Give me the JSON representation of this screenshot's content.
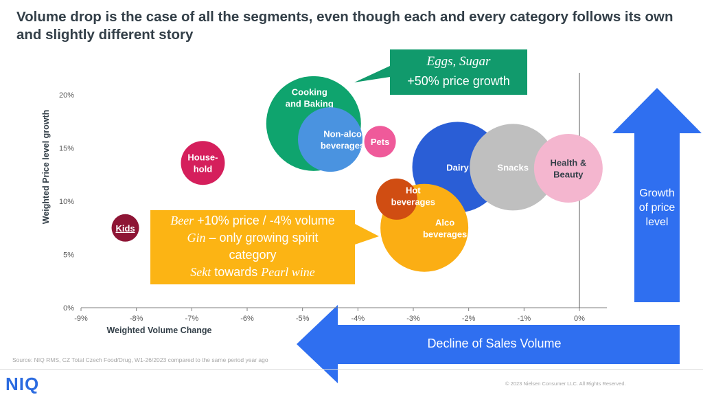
{
  "title": "Volume drop is the case of all the segments, even though each and every category follows its own and slightly different story",
  "chart_data": {
    "type": "scatter",
    "xlabel": "Weighted Volume Change",
    "ylabel": "Weighted Price level growth",
    "xlim": [
      -9,
      0.5
    ],
    "ylim": [
      0,
      20
    ],
    "x_ticks": [
      "-9%",
      "-8%",
      "-7%",
      "-6%",
      "-5%",
      "-4%",
      "-3%",
      "-2%",
      "-1%",
      "0%"
    ],
    "y_ticks": [
      "0%",
      "5%",
      "10%",
      "15%",
      "20%"
    ],
    "grid": false,
    "bubbles": [
      {
        "name": "Cooking and Baking",
        "lines": [
          "Cooking",
          "and Baking"
        ],
        "x": -4.8,
        "y": 17.3,
        "r": 69,
        "color": "#0fa46e"
      },
      {
        "name": "Non-alco beverages",
        "lines": [
          "Non-alco",
          "beverages"
        ],
        "x": -4.5,
        "y": 15.8,
        "r": 47,
        "color": "#4a93e0"
      },
      {
        "name": "Pets",
        "lines": [
          "Pets"
        ],
        "x": -3.6,
        "y": 15.6,
        "r": 23,
        "color": "#ef5a9a"
      },
      {
        "name": "House-hold",
        "lines": [
          "House-",
          "hold"
        ],
        "x": -6.8,
        "y": 13.6,
        "r": 32,
        "color": "#d51f5c"
      },
      {
        "name": "Kids",
        "lines": [
          "Kids"
        ],
        "x": -8.2,
        "y": 7.5,
        "r": 20,
        "color": "#8e1535"
      },
      {
        "name": "Dairy",
        "lines": [
          "Dairy"
        ],
        "x": -2.2,
        "y": 13.2,
        "r": 66,
        "color": "#2a5ed6"
      },
      {
        "name": "Snacks",
        "lines": [
          "Snacks"
        ],
        "x": -1.2,
        "y": 13.2,
        "r": 63,
        "color": "#bfbfbf"
      },
      {
        "name": "Health & Beauty",
        "lines": [
          "Health &",
          "Beauty"
        ],
        "x": -0.2,
        "y": 13.1,
        "r": 50,
        "color": "#f4b6cf",
        "text_color": "#333f48"
      },
      {
        "name": "Alco beverages",
        "lines": [
          "Alco",
          "beverages"
        ],
        "x": -2.8,
        "y": 7.5,
        "r": 64,
        "color": "#fbae14"
      },
      {
        "name": "Hot beverages",
        "lines": [
          "Hot",
          "beverages"
        ],
        "x": -3.3,
        "y": 10.2,
        "r": 30,
        "color": "#d04d12"
      }
    ]
  },
  "callouts": {
    "green": {
      "line1": "Eggs, Sugar",
      "line2": "+50% price growth",
      "color": "#119a6c"
    },
    "yellow": {
      "beer_em": "Beer",
      "beer_rest": " +10% price / -4% volume",
      "gin_em": "Gin",
      "gin_rest": " – only growing spirit",
      "gin_line2": "category",
      "sekt_em": "Sekt",
      "sekt_mid": " towards ",
      "sekt_em2": "Pearl wine",
      "color": "#fcb414"
    }
  },
  "arrows": {
    "up_label_lines": [
      "Growth",
      "of price",
      "level"
    ],
    "left_label": "Decline of Sales Volume",
    "color": "#2f6ff0"
  },
  "footer": {
    "source": "Source: NIQ RMS, CZ Total Czech Food/Drug, W1-26/2023 compared to the same period year ago",
    "copyright": "© 2023 Nielsen Consumer LLC. All Rights Reserved.",
    "logo": "NIQ"
  }
}
